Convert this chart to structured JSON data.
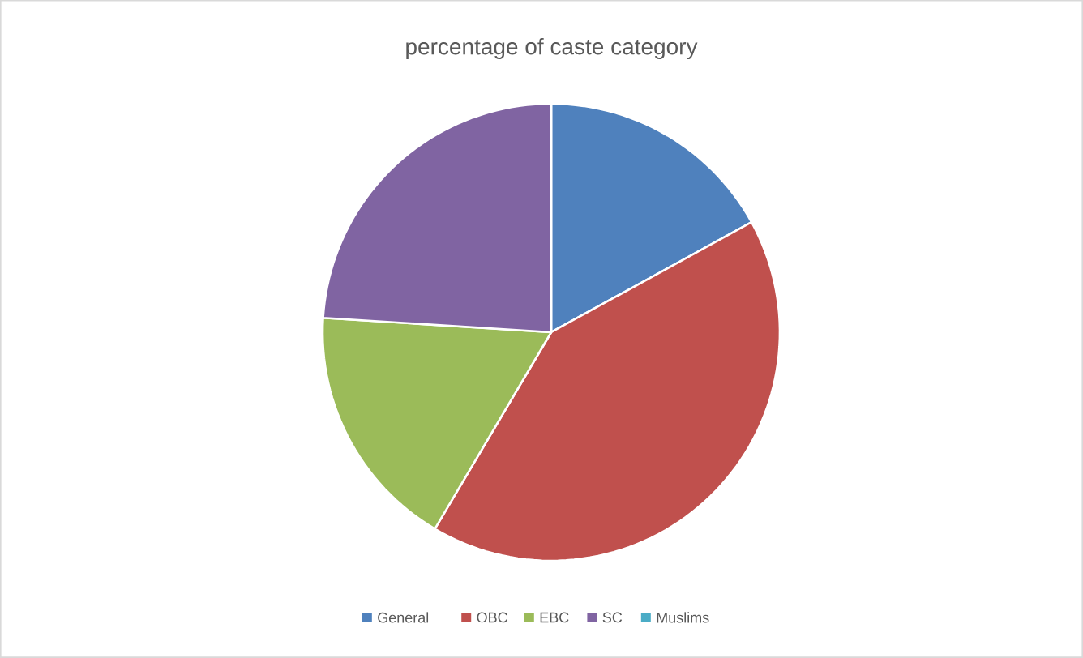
{
  "chart_data": {
    "type": "pie",
    "title": "percentage of caste category",
    "categories": [
      "General",
      "OBC",
      "EBC",
      "SC",
      "Muslims"
    ],
    "values": [
      17,
      41.5,
      17.5,
      24,
      0
    ],
    "colors": [
      "#4f81bd",
      "#c0504d",
      "#9bbb59",
      "#8064a2",
      "#4bacc6"
    ],
    "legend": "bottom"
  }
}
